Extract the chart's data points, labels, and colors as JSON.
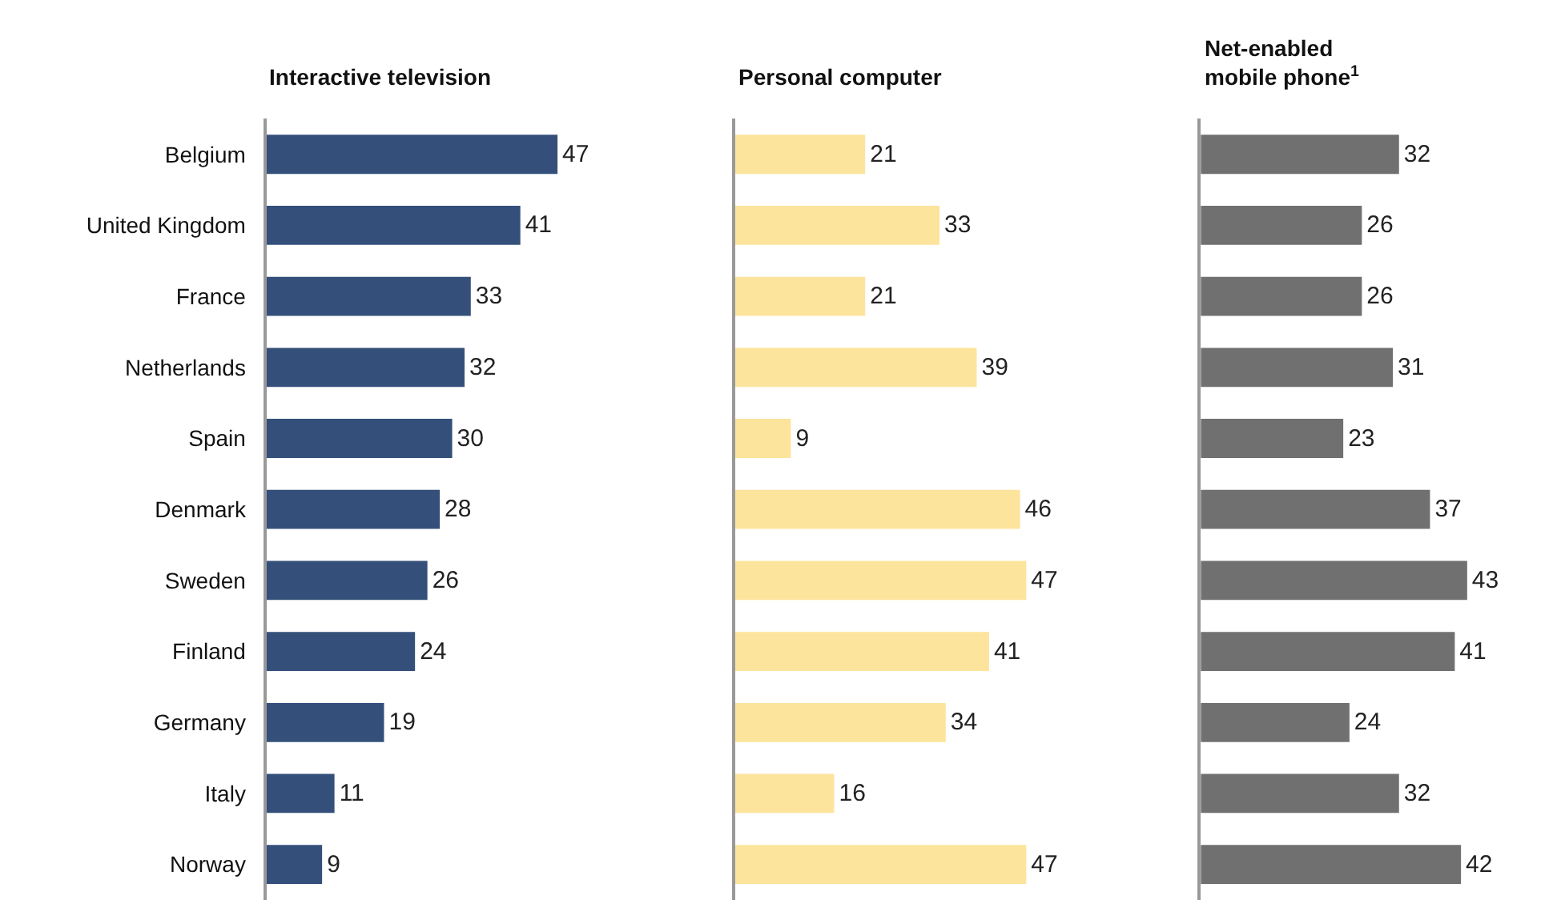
{
  "chart_data": [
    {
      "type": "bar",
      "orientation": "horizontal",
      "title": "Interactive television",
      "categories": [
        "Belgium",
        "United Kingdom",
        "France",
        "Netherlands",
        "Spain",
        "Denmark",
        "Sweden",
        "Finland",
        "Germany",
        "Italy",
        "Norway"
      ],
      "values": [
        47,
        41,
        33,
        32,
        30,
        28,
        26,
        24,
        19,
        11,
        9
      ],
      "color": "#34507a",
      "data_labels": true,
      "tick_labels": "y"
    },
    {
      "type": "bar",
      "orientation": "horizontal",
      "title": "Personal computer",
      "categories": [
        "Belgium",
        "United Kingdom",
        "France",
        "Netherlands",
        "Spain",
        "Denmark",
        "Sweden",
        "Finland",
        "Germany",
        "Italy",
        "Norway"
      ],
      "values": [
        21,
        33,
        21,
        39,
        9,
        46,
        47,
        41,
        34,
        16,
        47
      ],
      "color": "#fde49c",
      "data_labels": true,
      "tick_labels": false
    },
    {
      "type": "bar",
      "orientation": "horizontal",
      "title": "Net-enabled mobile phone$^{1}$",
      "categories": [
        "Belgium",
        "United Kingdom",
        "France",
        "Netherlands",
        "Spain",
        "Denmark",
        "Sweden",
        "Finland",
        "Germany",
        "Italy",
        "Norway"
      ],
      "values": [
        32,
        26,
        26,
        31,
        23,
        37,
        43,
        41,
        24,
        32,
        42
      ],
      "color": "#707070",
      "data_labels": true,
      "tick_labels": false
    }
  ]
}
